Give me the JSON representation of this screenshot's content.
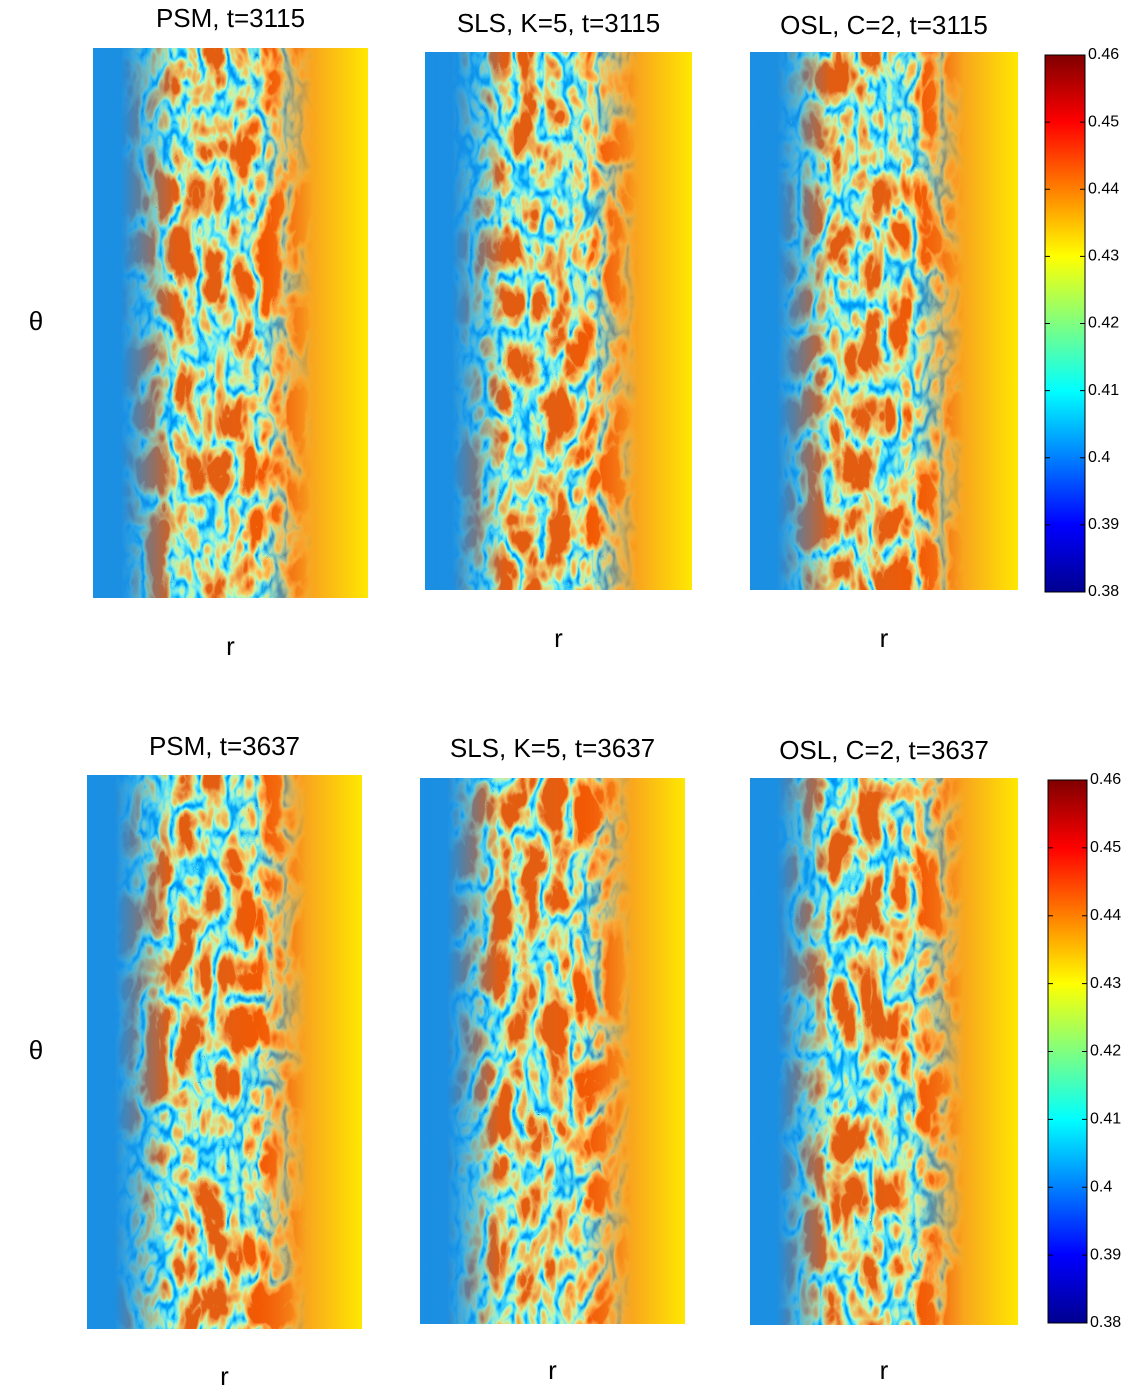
{
  "rows": [
    {
      "ylabel": "θ",
      "panels": [
        {
          "title": "PSM, t=3115",
          "xlabel": "r"
        },
        {
          "title": "SLS, K=5, t=3115",
          "xlabel": "r"
        },
        {
          "title": "OSL, C=2, t=3115",
          "xlabel": "r"
        }
      ],
      "colorbar": {
        "lim": [
          0.38,
          0.46
        ],
        "ticks": [
          0.38,
          0.39,
          0.4,
          0.41,
          0.42,
          0.43,
          0.44,
          0.45,
          0.46
        ]
      }
    },
    {
      "ylabel": "θ",
      "panels": [
        {
          "title": "PSM, t=3637",
          "xlabel": "r"
        },
        {
          "title": "SLS, K=5, t=3637",
          "xlabel": "r"
        },
        {
          "title": "OSL, C=2, t=3637",
          "xlabel": "r"
        }
      ],
      "colorbar": {
        "lim": [
          0.38,
          0.46
        ],
        "ticks": [
          0.38,
          0.39,
          0.4,
          0.41,
          0.42,
          0.43,
          0.44,
          0.45,
          0.46
        ]
      }
    }
  ]
}
